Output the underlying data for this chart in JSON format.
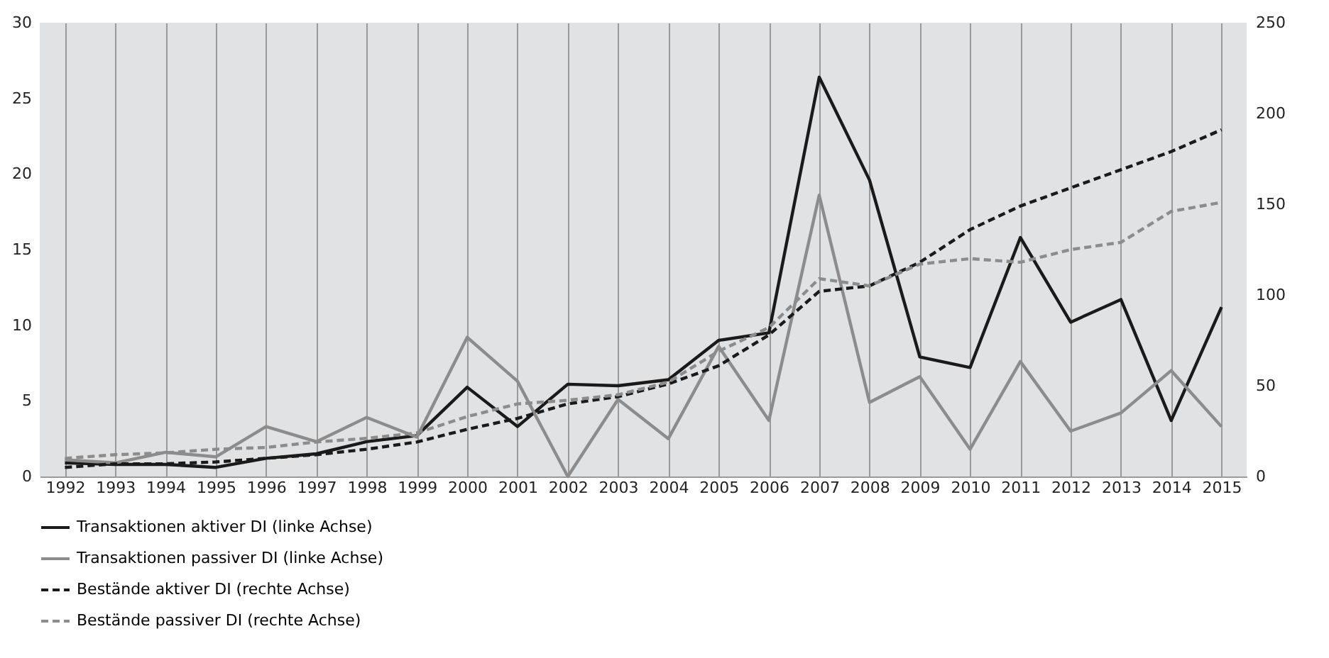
{
  "chart_data": {
    "type": "line",
    "categories": [
      "1992",
      "1993",
      "1994",
      "1995",
      "1996",
      "1997",
      "1998",
      "1999",
      "2000",
      "2001",
      "2002",
      "2003",
      "2004",
      "2005",
      "2006",
      "2007",
      "2008",
      "2009",
      "2010",
      "2011",
      "2012",
      "2013",
      "2014",
      "2015"
    ],
    "series": [
      {
        "name": "Transaktionen aktiver DI (linke Achse)",
        "color": "#1a1a1a",
        "line_style": "solid",
        "axis": "y",
        "values": [
          0.9,
          0.8,
          0.8,
          0.6,
          1.2,
          1.5,
          2.3,
          2.7,
          5.9,
          3.3,
          6.1,
          6.0,
          6.4,
          9.0,
          9.5,
          26.4,
          19.6,
          7.9,
          7.2,
          15.8,
          10.2,
          11.7,
          3.7,
          11.2
        ]
      },
      {
        "name": "Transaktionen passiver DI (linke Achse)",
        "color": "#8c8c8c",
        "line_style": "solid",
        "axis": "y",
        "values": [
          1.1,
          0.9,
          1.6,
          1.3,
          3.3,
          2.3,
          3.9,
          2.6,
          9.2,
          6.3,
          0,
          5.1,
          2.5,
          8.6,
          3.7,
          18.6,
          4.9,
          6.6,
          1.8,
          7.6,
          3.0,
          4.2,
          7.0,
          3.3
        ]
      },
      {
        "name": "Bestände aktiver DI (rechte Achse)",
        "color": "#1a1a1a",
        "line_style": "dashed",
        "axis": "y2",
        "values": [
          5,
          7,
          7,
          8,
          10,
          12,
          15,
          19,
          26,
          32,
          40,
          44,
          51,
          61,
          78,
          102,
          105,
          118,
          136,
          149,
          159,
          169,
          179,
          191
        ]
      },
      {
        "name": "Bestände passiver DI (rechte Achse)",
        "color": "#8c8c8c",
        "line_style": "dashed",
        "axis": "y2",
        "values": [
          10,
          12,
          13,
          15,
          16,
          19,
          21,
          24,
          33,
          40,
          42,
          45,
          52,
          69,
          82,
          109,
          105,
          117,
          120,
          118,
          125,
          129,
          146,
          151
        ]
      }
    ],
    "ylim": [
      0,
      30
    ],
    "yticks": [
      0,
      5,
      10,
      15,
      20,
      25,
      30
    ],
    "y2lim": [
      0,
      250
    ],
    "y2ticks": [
      0,
      50,
      100,
      150,
      200,
      250
    ],
    "grid": "x",
    "legend": "bottom",
    "marker": "none"
  }
}
